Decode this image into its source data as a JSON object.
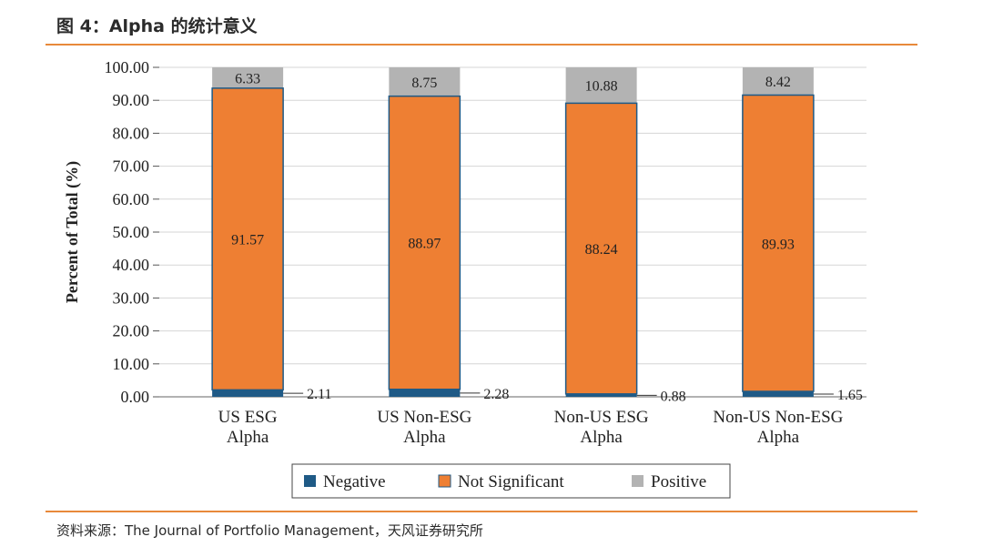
{
  "figure": {
    "title": "图 4：Alpha 的统计意义",
    "source": "资料来源：The Journal of Portfolio Management，天风证券研究所"
  },
  "chart_data": {
    "type": "bar",
    "stacked": true,
    "categories": [
      [
        "US ESG",
        "Alpha"
      ],
      [
        "US Non-ESG",
        "Alpha"
      ],
      [
        "Non-US ESG",
        "Alpha"
      ],
      [
        "Non-US Non-ESG",
        "Alpha"
      ]
    ],
    "series": [
      {
        "name": "Negative",
        "values": [
          2.11,
          2.28,
          0.88,
          1.65
        ],
        "color": "#1f5a86"
      },
      {
        "name": "Not Significant",
        "values": [
          91.57,
          88.97,
          88.24,
          89.93
        ],
        "color": "#ee7f33"
      },
      {
        "name": "Positive",
        "values": [
          6.33,
          8.75,
          10.88,
          8.42
        ],
        "color": "#b3b3b3"
      }
    ],
    "value_labels": {
      "Negative": [
        "2.11",
        "2.28",
        "0.88",
        "1.65"
      ],
      "Not Significant": [
        "91.57",
        "88.97",
        "88.24",
        "89.93"
      ],
      "Positive": [
        "6.33",
        "8.75",
        "10.88",
        "8.42"
      ]
    },
    "ylabel": "Percent of Total (%)",
    "ylim": [
      0,
      100
    ],
    "yticks": [
      "0.00",
      "10.00",
      "20.00",
      "30.00",
      "40.00",
      "50.00",
      "60.00",
      "70.00",
      "80.00",
      "90.00",
      "100.00"
    ],
    "grid": true,
    "legend": "bottom-center",
    "bar_outline_color": "#1f5a86"
  }
}
